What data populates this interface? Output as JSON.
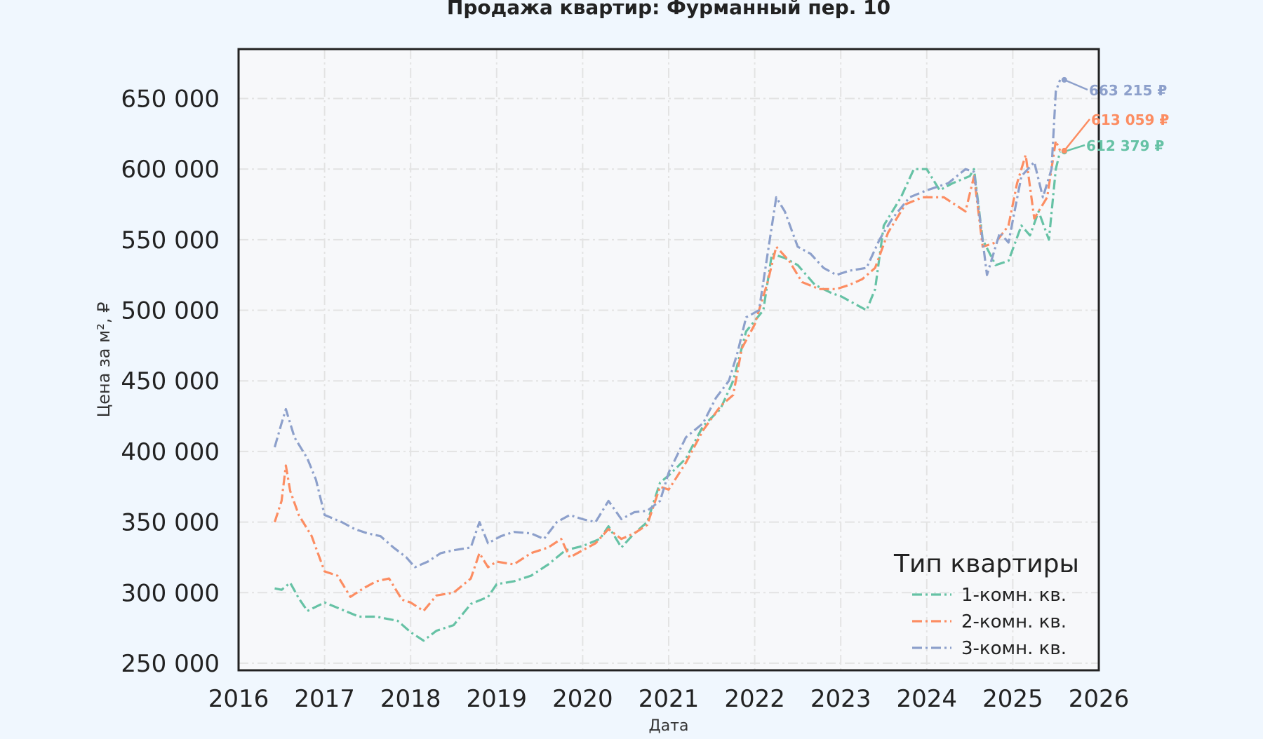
{
  "chart_data": {
    "type": "line",
    "title": "Продажа квартир: Фурманный пер. 10",
    "xlabel": "Дата",
    "ylabel": "Цена за м², ₽",
    "xlim": [
      2016,
      2026
    ],
    "ylim": [
      245000,
      685000
    ],
    "x_ticks": [
      "2016",
      "2017",
      "2018",
      "2019",
      "2020",
      "2021",
      "2022",
      "2023",
      "2024",
      "2025",
      "2026"
    ],
    "y_ticks": [
      "250 000",
      "300 000",
      "350 000",
      "400 000",
      "450 000",
      "500 000",
      "550 000",
      "600 000",
      "650 000"
    ],
    "grid": true,
    "legend": {
      "title": "Тип квартиры",
      "placement": "bottom-right"
    },
    "series": [
      {
        "name": "1-комн. кв.",
        "color": "#66c2a5",
        "last_label": "612 379 ₽",
        "points": [
          [
            2016.42,
            303000
          ],
          [
            2016.5,
            302000
          ],
          [
            2016.6,
            307000
          ],
          [
            2016.7,
            296000
          ],
          [
            2016.8,
            287000
          ],
          [
            2017.0,
            293000
          ],
          [
            2017.2,
            288000
          ],
          [
            2017.4,
            283000
          ],
          [
            2017.6,
            283000
          ],
          [
            2017.85,
            280000
          ],
          [
            2018.0,
            272000
          ],
          [
            2018.15,
            266000
          ],
          [
            2018.3,
            273000
          ],
          [
            2018.5,
            277000
          ],
          [
            2018.7,
            292000
          ],
          [
            2018.9,
            297000
          ],
          [
            2019.0,
            306000
          ],
          [
            2019.2,
            308000
          ],
          [
            2019.4,
            312000
          ],
          [
            2019.6,
            320000
          ],
          [
            2019.8,
            330000
          ],
          [
            2020.0,
            333000
          ],
          [
            2020.2,
            338000
          ],
          [
            2020.3,
            347000
          ],
          [
            2020.45,
            332000
          ],
          [
            2020.6,
            342000
          ],
          [
            2020.75,
            350000
          ],
          [
            2020.9,
            378000
          ],
          [
            2021.0,
            383000
          ],
          [
            2021.2,
            395000
          ],
          [
            2021.4,
            418000
          ],
          [
            2021.6,
            430000
          ],
          [
            2021.75,
            450000
          ],
          [
            2021.9,
            485000
          ],
          [
            2022.1,
            500000
          ],
          [
            2022.2,
            540000
          ],
          [
            2022.35,
            537000
          ],
          [
            2022.5,
            532000
          ],
          [
            2022.7,
            518000
          ],
          [
            2022.9,
            512000
          ],
          [
            2023.0,
            510000
          ],
          [
            2023.15,
            505000
          ],
          [
            2023.3,
            500000
          ],
          [
            2023.4,
            515000
          ],
          [
            2023.5,
            560000
          ],
          [
            2023.7,
            580000
          ],
          [
            2023.85,
            600000
          ],
          [
            2024.0,
            600000
          ],
          [
            2024.15,
            585000
          ],
          [
            2024.3,
            590000
          ],
          [
            2024.5,
            595000
          ],
          [
            2024.55,
            600000
          ],
          [
            2024.65,
            550000
          ],
          [
            2024.8,
            532000
          ],
          [
            2024.95,
            535000
          ],
          [
            2025.1,
            560000
          ],
          [
            2025.2,
            553000
          ],
          [
            2025.3,
            570000
          ],
          [
            2025.42,
            550000
          ],
          [
            2025.5,
            600000
          ],
          [
            2025.55,
            612379
          ]
        ]
      },
      {
        "name": "2-комн. кв.",
        "color": "#fc8d62",
        "last_label": "613 059 ₽",
        "points": [
          [
            2016.42,
            350000
          ],
          [
            2016.5,
            365000
          ],
          [
            2016.55,
            390000
          ],
          [
            2016.6,
            372000
          ],
          [
            2016.7,
            355000
          ],
          [
            2016.85,
            340000
          ],
          [
            2017.0,
            315000
          ],
          [
            2017.15,
            312000
          ],
          [
            2017.3,
            297000
          ],
          [
            2017.45,
            303000
          ],
          [
            2017.6,
            308000
          ],
          [
            2017.75,
            310000
          ],
          [
            2017.9,
            295000
          ],
          [
            2018.0,
            293000
          ],
          [
            2018.15,
            287000
          ],
          [
            2018.3,
            298000
          ],
          [
            2018.5,
            300000
          ],
          [
            2018.7,
            310000
          ],
          [
            2018.8,
            328000
          ],
          [
            2018.9,
            318000
          ],
          [
            2019.0,
            322000
          ],
          [
            2019.2,
            320000
          ],
          [
            2019.4,
            328000
          ],
          [
            2019.6,
            332000
          ],
          [
            2019.75,
            338000
          ],
          [
            2019.85,
            325000
          ],
          [
            2020.0,
            330000
          ],
          [
            2020.15,
            335000
          ],
          [
            2020.3,
            345000
          ],
          [
            2020.45,
            338000
          ],
          [
            2020.6,
            342000
          ],
          [
            2020.75,
            348000
          ],
          [
            2020.9,
            375000
          ],
          [
            2021.0,
            373000
          ],
          [
            2021.2,
            392000
          ],
          [
            2021.4,
            415000
          ],
          [
            2021.6,
            432000
          ],
          [
            2021.75,
            440000
          ],
          [
            2021.85,
            473000
          ],
          [
            2022.0,
            490000
          ],
          [
            2022.15,
            520000
          ],
          [
            2022.25,
            545000
          ],
          [
            2022.4,
            535000
          ],
          [
            2022.55,
            520000
          ],
          [
            2022.75,
            515000
          ],
          [
            2022.95,
            515000
          ],
          [
            2023.1,
            518000
          ],
          [
            2023.25,
            522000
          ],
          [
            2023.4,
            530000
          ],
          [
            2023.55,
            555000
          ],
          [
            2023.75,
            575000
          ],
          [
            2023.95,
            580000
          ],
          [
            2024.2,
            580000
          ],
          [
            2024.45,
            570000
          ],
          [
            2024.55,
            595000
          ],
          [
            2024.65,
            545000
          ],
          [
            2024.8,
            548000
          ],
          [
            2024.95,
            560000
          ],
          [
            2025.05,
            590000
          ],
          [
            2025.15,
            610000
          ],
          [
            2025.25,
            565000
          ],
          [
            2025.4,
            580000
          ],
          [
            2025.5,
            620000
          ],
          [
            2025.55,
            613059
          ]
        ]
      },
      {
        "name": "3-комн. кв.",
        "color": "#8da0cb",
        "last_label": "663 215 ₽",
        "points": [
          [
            2016.42,
            403000
          ],
          [
            2016.5,
            420000
          ],
          [
            2016.55,
            430000
          ],
          [
            2016.65,
            410000
          ],
          [
            2016.8,
            395000
          ],
          [
            2016.9,
            380000
          ],
          [
            2017.0,
            355000
          ],
          [
            2017.2,
            350000
          ],
          [
            2017.35,
            345000
          ],
          [
            2017.5,
            342000
          ],
          [
            2017.65,
            340000
          ],
          [
            2017.8,
            332000
          ],
          [
            2017.95,
            325000
          ],
          [
            2018.05,
            318000
          ],
          [
            2018.2,
            322000
          ],
          [
            2018.35,
            328000
          ],
          [
            2018.5,
            330000
          ],
          [
            2018.7,
            332000
          ],
          [
            2018.8,
            350000
          ],
          [
            2018.9,
            335000
          ],
          [
            2019.05,
            340000
          ],
          [
            2019.2,
            343000
          ],
          [
            2019.4,
            342000
          ],
          [
            2019.55,
            338000
          ],
          [
            2019.7,
            350000
          ],
          [
            2019.85,
            355000
          ],
          [
            2020.0,
            352000
          ],
          [
            2020.15,
            350000
          ],
          [
            2020.3,
            365000
          ],
          [
            2020.45,
            352000
          ],
          [
            2020.6,
            357000
          ],
          [
            2020.75,
            358000
          ],
          [
            2020.9,
            365000
          ],
          [
            2021.0,
            385000
          ],
          [
            2021.2,
            410000
          ],
          [
            2021.4,
            420000
          ],
          [
            2021.55,
            438000
          ],
          [
            2021.7,
            450000
          ],
          [
            2021.8,
            470000
          ],
          [
            2021.9,
            495000
          ],
          [
            2022.05,
            500000
          ],
          [
            2022.15,
            540000
          ],
          [
            2022.25,
            580000
          ],
          [
            2022.35,
            570000
          ],
          [
            2022.5,
            545000
          ],
          [
            2022.65,
            540000
          ],
          [
            2022.8,
            530000
          ],
          [
            2022.95,
            525000
          ],
          [
            2023.1,
            528000
          ],
          [
            2023.3,
            530000
          ],
          [
            2023.45,
            550000
          ],
          [
            2023.6,
            565000
          ],
          [
            2023.8,
            580000
          ],
          [
            2024.0,
            585000
          ],
          [
            2024.25,
            590000
          ],
          [
            2024.45,
            600000
          ],
          [
            2024.55,
            598000
          ],
          [
            2024.7,
            525000
          ],
          [
            2024.85,
            555000
          ],
          [
            2024.95,
            548000
          ],
          [
            2025.1,
            595000
          ],
          [
            2025.25,
            605000
          ],
          [
            2025.35,
            580000
          ],
          [
            2025.45,
            600000
          ],
          [
            2025.5,
            655000
          ],
          [
            2025.55,
            663215
          ]
        ]
      }
    ]
  }
}
